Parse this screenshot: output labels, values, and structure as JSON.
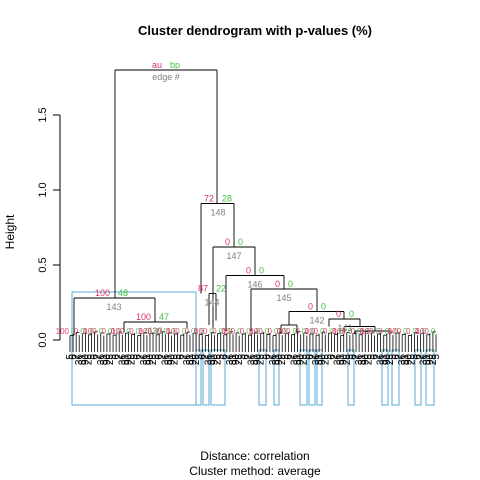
{
  "chart_data": {
    "type": "dendrogram",
    "title": "Cluster dendrogram with p-values (%)",
    "ylabel": "Height",
    "xlabel_lines": [
      "Distance:  correlation",
      "Cluster method: average"
    ],
    "ylim": [
      0,
      1.8
    ],
    "yticks": [
      "0.0",
      "0.5",
      "1.0",
      "1.5"
    ],
    "legend": {
      "au": "au",
      "bp": "bp",
      "edge": "edge #"
    },
    "colors": {
      "au": "#d6336c",
      "bp": "#40c040",
      "edge": "#808080",
      "box": "#5aa9d6",
      "line": "#000000"
    },
    "main_merges": [
      {
        "edge": "148",
        "height": 1.8,
        "au": "au",
        "bp": "bp"
      },
      {
        "edge": "148",
        "height": 0.91,
        "au": "72",
        "bp": "28"
      },
      {
        "edge": "147",
        "height": 0.62,
        "au": "0",
        "bp": "0"
      },
      {
        "edge": "146",
        "height": 0.43,
        "au": "0",
        "bp": "0"
      },
      {
        "edge": "145",
        "height": 0.34,
        "au": "0",
        "bp": "0"
      },
      {
        "edge": "143",
        "height": 0.28,
        "au": "100",
        "bp": "48"
      },
      {
        "edge": "142",
        "height": 0.19,
        "au": "0",
        "bp": "0"
      },
      {
        "edge": "141",
        "height": 0.14,
        "au": "0",
        "bp": "0"
      },
      {
        "edge": "139",
        "height": 0.12,
        "au": "100",
        "bp": "47"
      },
      {
        "edge": "144",
        "height": 0.31,
        "au": "87",
        "bp": "22"
      }
    ],
    "leaf_labels_sample": [
      "5",
      "6",
      "7",
      "36",
      "51",
      "90",
      "25"
    ]
  }
}
